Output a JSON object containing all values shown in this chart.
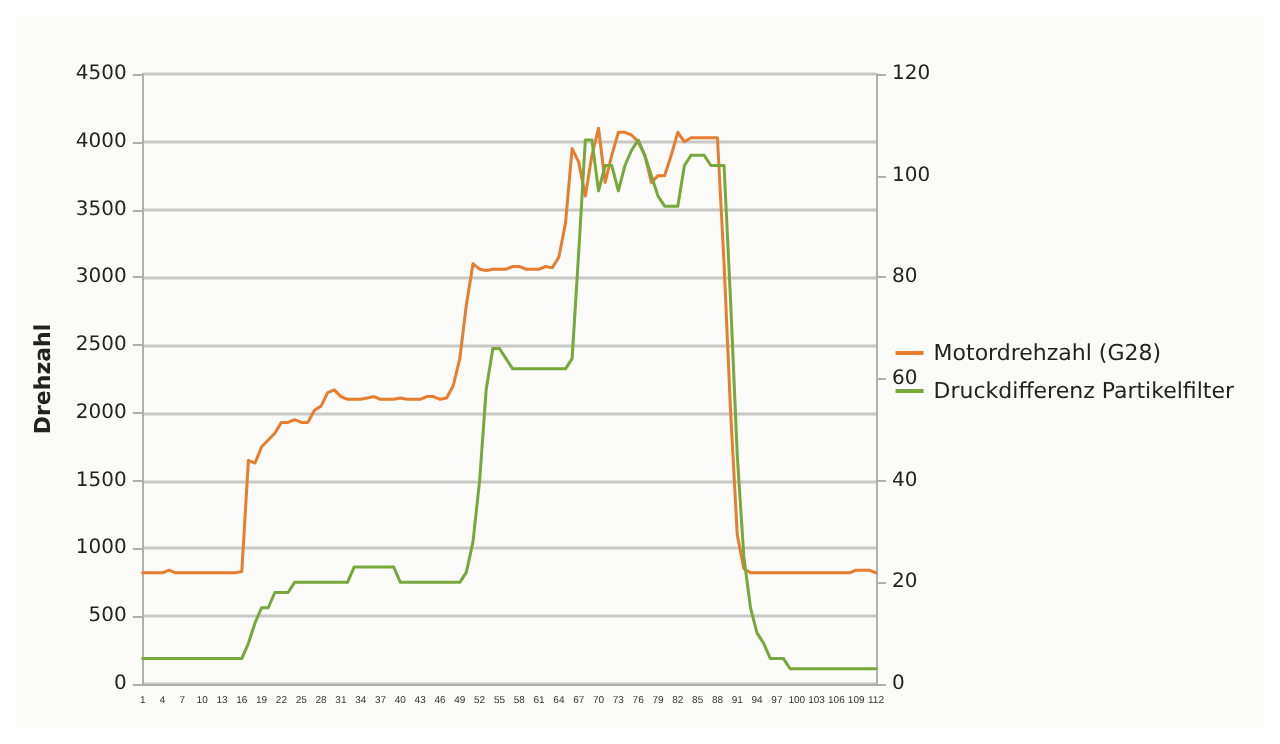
{
  "chart_data": {
    "type": "line",
    "ylabel": "Drehzahl",
    "categories": [
      "1",
      null,
      null,
      "4",
      null,
      null,
      "7",
      null,
      null,
      "10",
      null,
      null,
      "13",
      null,
      null,
      "16",
      null,
      null,
      "19",
      null,
      null,
      "22",
      null,
      null,
      "25",
      null,
      null,
      "28",
      null,
      null,
      "31",
      null,
      null,
      "34",
      null,
      null,
      "37",
      null,
      null,
      "40",
      null,
      null,
      "43",
      null,
      null,
      "46",
      null,
      null,
      "49",
      null,
      null,
      "52",
      null,
      null,
      "55",
      null,
      null,
      "58",
      null,
      null,
      "61",
      null,
      null,
      "64",
      null,
      null,
      "67",
      null,
      null,
      "70",
      null,
      null,
      "73",
      null,
      null,
      "76",
      null,
      null,
      "79",
      null,
      null,
      "82",
      null,
      null,
      "85",
      null,
      null,
      "88",
      null,
      null,
      "91",
      null,
      null,
      "94",
      null,
      null,
      "97",
      null,
      null,
      "100",
      null,
      null,
      "103",
      null,
      null,
      "106",
      null,
      null,
      "109",
      null,
      null,
      "112"
    ],
    "series": [
      {
        "name": "Motordrehzahl (G28)",
        "color": "#e87d2e",
        "values": [
          820,
          820,
          820,
          820,
          840,
          820,
          820,
          820,
          820,
          820,
          820,
          820,
          820,
          820,
          820,
          830,
          1650,
          1630,
          1750,
          1800,
          1850,
          1930,
          1930,
          1950,
          1930,
          1930,
          2020,
          2050,
          2150,
          2170,
          2120,
          2100,
          2100,
          2100,
          2110,
          2120,
          2100,
          2100,
          2100,
          2110,
          2100,
          2100,
          2100,
          2120,
          2120,
          2100,
          2110,
          2200,
          2400,
          2800,
          3100,
          3060,
          3050,
          3060,
          3060,
          3060,
          3080,
          3080,
          3060,
          3060,
          3060,
          3080,
          3070,
          3150,
          3400,
          3950,
          3850,
          3600,
          3900,
          4100,
          3700,
          3900,
          4070,
          4070,
          4050,
          4000,
          3900,
          3700,
          3750,
          3750,
          3900,
          4070,
          4000,
          4030,
          4030,
          4030,
          4030,
          4030,
          3100,
          2000,
          1100,
          850,
          820,
          820,
          820,
          820,
          820,
          820,
          820,
          820,
          820,
          820,
          820,
          820,
          820,
          820,
          820,
          820,
          840,
          840,
          840,
          820
        ]
      },
      {
        "name": "Druckdifferenz Partikelfilter",
        "color": "#77a83a",
        "axis": "y2",
        "values": [
          5,
          5,
          5,
          5,
          5,
          5,
          5,
          5,
          5,
          5,
          5,
          5,
          5,
          5,
          5,
          5,
          8,
          12,
          15,
          15,
          18,
          18,
          18,
          20,
          20,
          20,
          20,
          20,
          20,
          20,
          20,
          20,
          23,
          23,
          23,
          23,
          23,
          23,
          23,
          20,
          20,
          20,
          20,
          20,
          20,
          20,
          20,
          20,
          20,
          22,
          28,
          40,
          58,
          66,
          66,
          64,
          62,
          62,
          62,
          62,
          62,
          62,
          62,
          62,
          62,
          64,
          85,
          107,
          107,
          97,
          102,
          102,
          97,
          102,
          105,
          107,
          104,
          100,
          96,
          94,
          94,
          94,
          102,
          104,
          104,
          104,
          102,
          102,
          102,
          75,
          45,
          25,
          15,
          10,
          8,
          5,
          5,
          5,
          3,
          3,
          3,
          3,
          3,
          3,
          3,
          3,
          3,
          3,
          3,
          3,
          3,
          3
        ]
      }
    ],
    "ylim": [
      0,
      4500
    ],
    "yticks": [
      0,
      500,
      1000,
      1500,
      2000,
      2500,
      3000,
      3500,
      4000,
      4500
    ],
    "y2lim": [
      0,
      120
    ],
    "y2ticks": [
      0,
      20,
      40,
      60,
      80,
      100,
      120
    ],
    "grid": "y",
    "legend": "right",
    "marker": "none",
    "line_style": "solid"
  }
}
